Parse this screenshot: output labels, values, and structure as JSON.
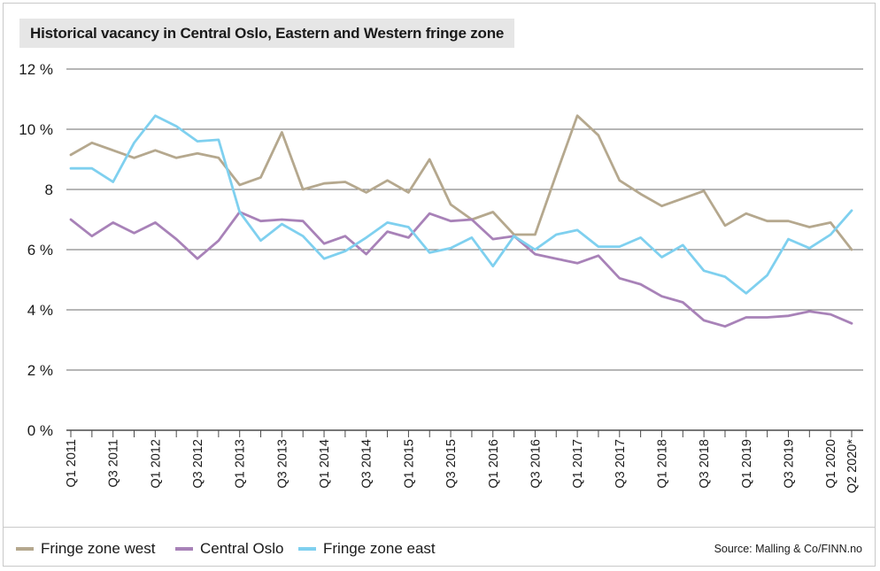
{
  "chart_data": {
    "type": "line",
    "title": "Historical vacancy in Central Oslo, Eastern and  Western fringe zone",
    "source": "Source: Malling & Co/FINN.no",
    "ylim": [
      0,
      12
    ],
    "yticks": [
      0,
      2,
      4,
      6,
      8,
      10,
      12
    ],
    "ytick_labels": [
      "0 %",
      "2 %",
      "4 %",
      "6 %",
      "8",
      "10 %",
      "12 %"
    ],
    "grid": true,
    "legend_position": "bottom-left",
    "x": [
      "Q1 2011",
      "Q2 2011",
      "Q3 2011",
      "Q4 2011",
      "Q1 2012",
      "Q2 2012",
      "Q3 2012",
      "Q4 2012",
      "Q1 2013",
      "Q2 2013",
      "Q3 2013",
      "Q4 2013",
      "Q1 2014",
      "Q2 2014",
      "Q3 2014",
      "Q4 2014",
      "Q1 2015",
      "Q2 2015",
      "Q3 2015",
      "Q4 2015",
      "Q1 2016",
      "Q2 2016",
      "Q3 2016",
      "Q4 2016",
      "Q1 2017",
      "Q2 2017",
      "Q3 2017",
      "Q4 2017",
      "Q1 2018",
      "Q2 2018",
      "Q3 2018",
      "Q4 2018",
      "Q1 2019",
      "Q2 2019",
      "Q3 2019",
      "Q4 2019",
      "Q1 2020",
      "Q2 2020*"
    ],
    "x_tick_labels": [
      "Q1 2011",
      "Q3 2011",
      "Q1 2012",
      "Q3 2012",
      "Q1 2013",
      "Q3 2013",
      "Q1 2014",
      "Q3 2014",
      "Q1 2015",
      "Q3 2015",
      "Q1 2016",
      "Q3 2016",
      "Q1 2017",
      "Q3 2017",
      "Q1 2018",
      "Q3 2018",
      "Q1 2019",
      "Q3 2019",
      "Q1 2020",
      "Q2 2020*"
    ],
    "series": [
      {
        "name": "Fringe zone west",
        "color": "#b5a88e",
        "values": [
          9.15,
          9.55,
          9.3,
          9.05,
          9.3,
          9.05,
          9.2,
          9.05,
          8.15,
          8.4,
          9.9,
          8.0,
          8.2,
          8.25,
          7.9,
          8.3,
          7.9,
          9.0,
          7.5,
          7.0,
          7.25,
          6.5,
          6.5,
          8.5,
          10.45,
          9.8,
          8.3,
          7.85,
          7.45,
          7.7,
          7.95,
          6.8,
          7.2,
          6.95,
          6.95,
          6.75,
          6.9,
          6.0
        ]
      },
      {
        "name": "Central Oslo",
        "color": "#a882b8",
        "values": [
          7.0,
          6.45,
          6.9,
          6.55,
          6.9,
          6.35,
          5.7,
          6.3,
          7.25,
          6.95,
          7.0,
          6.95,
          6.2,
          6.45,
          5.85,
          6.6,
          6.4,
          7.2,
          6.95,
          7.0,
          6.35,
          6.45,
          5.85,
          5.7,
          5.55,
          5.8,
          5.05,
          4.85,
          4.45,
          4.25,
          3.65,
          3.45,
          3.75,
          3.75,
          3.8,
          3.95,
          3.85,
          3.55
        ]
      },
      {
        "name": "Fringe zone east",
        "color": "#7fd0ef",
        "values": [
          8.7,
          8.7,
          8.25,
          9.55,
          10.45,
          10.1,
          9.6,
          9.65,
          7.25,
          6.3,
          6.85,
          6.45,
          5.7,
          5.95,
          6.4,
          6.9,
          6.75,
          5.9,
          6.05,
          6.4,
          5.45,
          6.45,
          6.0,
          6.5,
          6.65,
          6.1,
          6.1,
          6.4,
          5.75,
          6.15,
          5.3,
          5.1,
          4.55,
          5.15,
          6.35,
          6.05,
          6.5,
          7.3
        ]
      }
    ]
  }
}
